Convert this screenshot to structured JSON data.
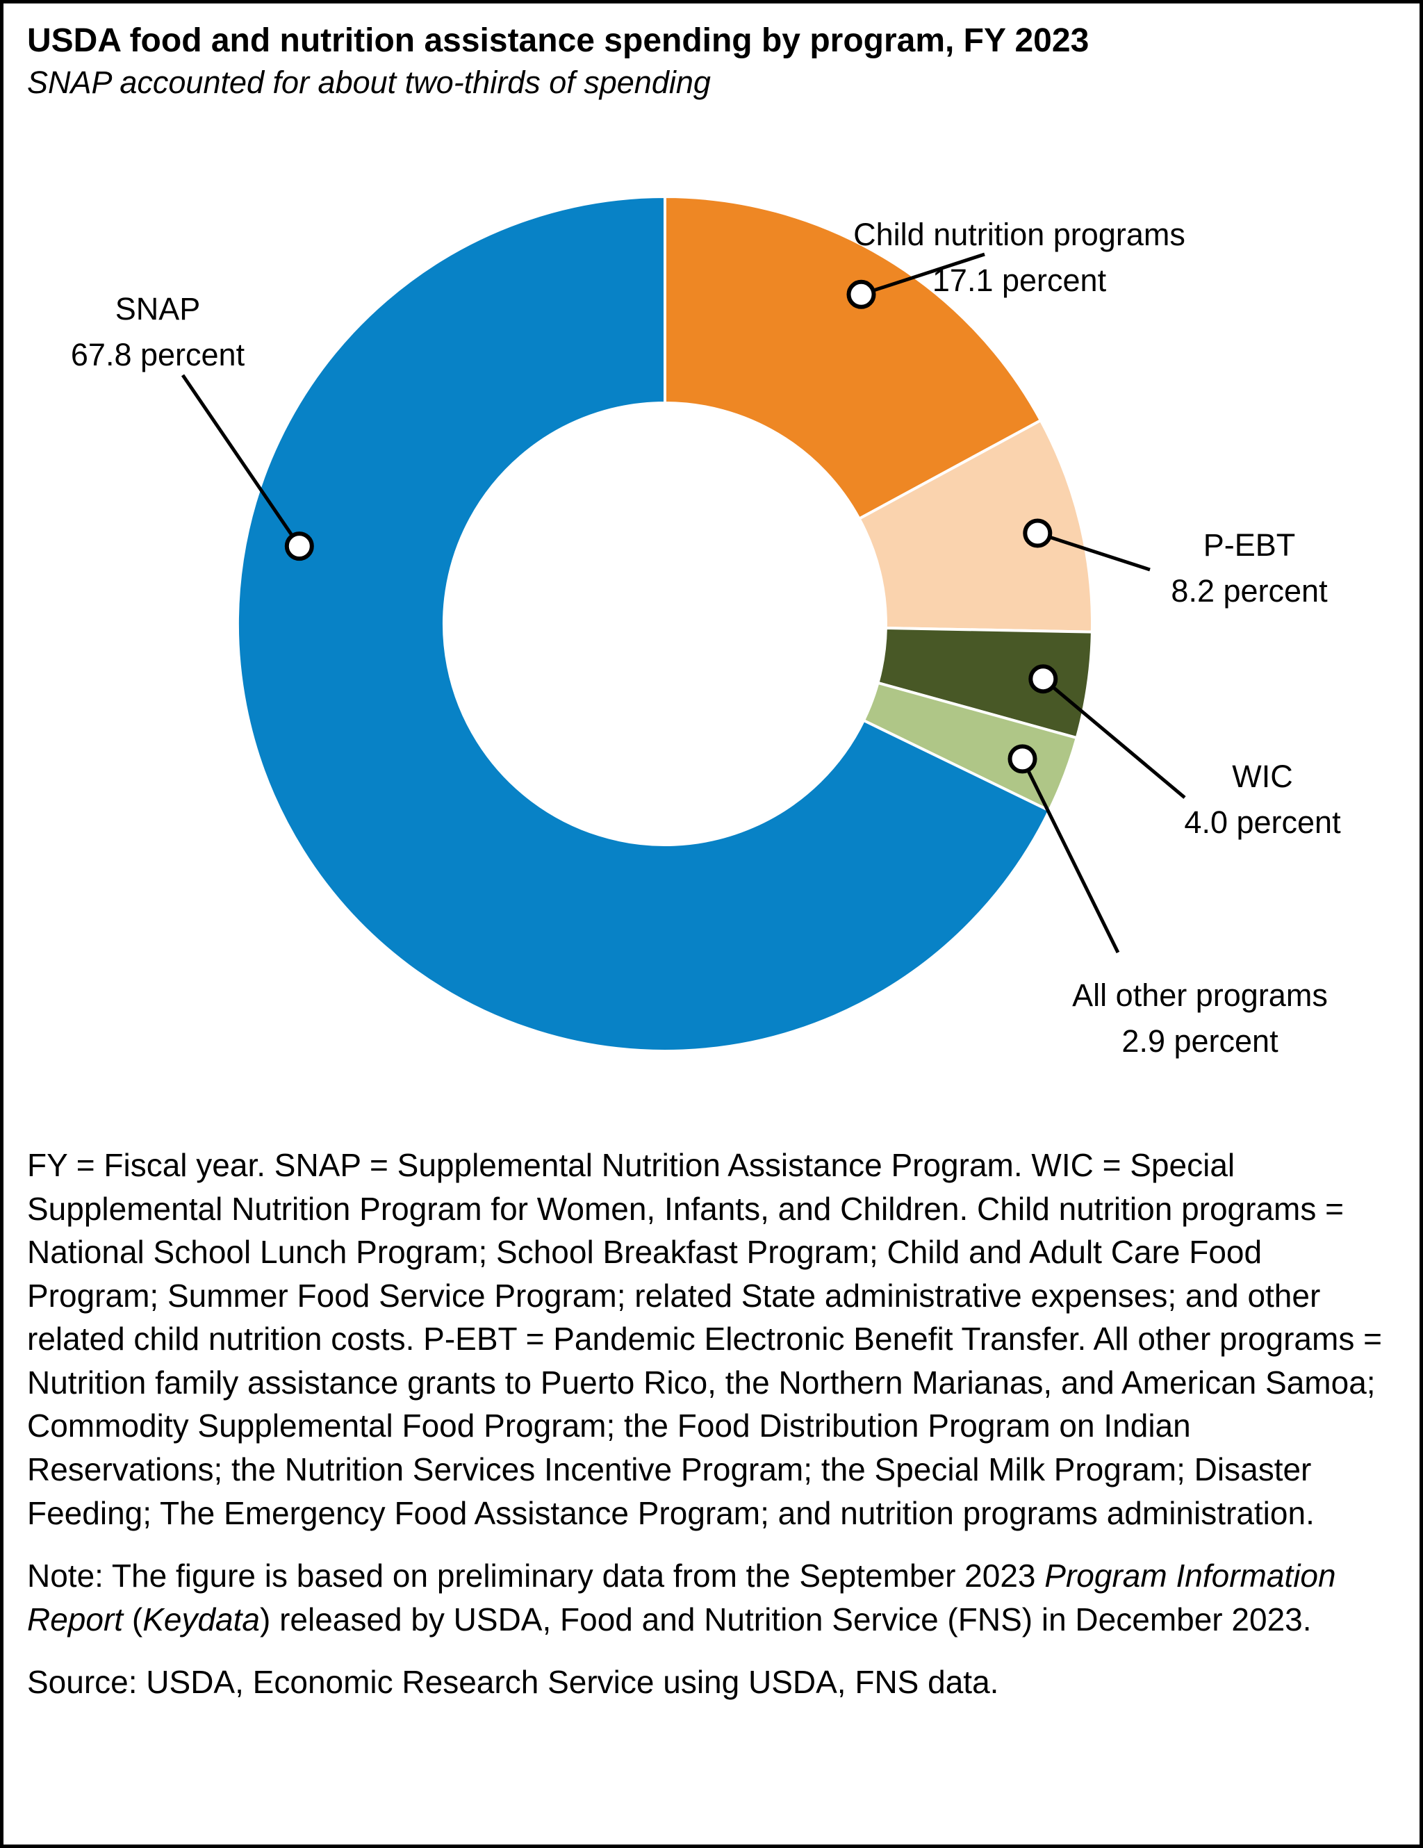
{
  "header": {
    "title": "USDA food and nutrition assistance spending by program, FY 2023",
    "subtitle": "SNAP accounted for about two-thirds of spending"
  },
  "chart_data": {
    "type": "pie",
    "donut": true,
    "title": "USDA food and nutrition assistance spending by program, FY 2023",
    "start_angle_deg": 0,
    "direction": "clockwise",
    "units": "percent of spending",
    "slices": [
      {
        "label": "Child nutrition programs",
        "pct": 17.1,
        "pct_label": "17.1 percent",
        "color": "#EE8724"
      },
      {
        "label": "P-EBT",
        "pct": 8.2,
        "pct_label": "8.2 percent",
        "color": "#FAD3AE"
      },
      {
        "label": "WIC",
        "pct": 4.0,
        "pct_label": "4.0 percent",
        "color": "#485826"
      },
      {
        "label": "All other programs",
        "pct": 2.9,
        "pct_label": "2.9 percent",
        "color": "#AFC687"
      },
      {
        "label": "SNAP",
        "pct": 67.8,
        "pct_label": "67.8 percent",
        "color": "#0882C6"
      }
    ],
    "marker_style": {
      "fill": "#ffffff",
      "stroke": "#000000"
    },
    "leader_line_color": "#000000"
  },
  "footnotes": {
    "definitions": "FY = Fiscal year. SNAP = Supplemental Nutrition Assistance Program. WIC = Special Supplemental Nutrition Program for Women, Infants, and Children. Child nutrition programs = National School Lunch Program; School Breakfast Program; Child and Adult Care Food Program; Summer Food Service Program; related State administrative expenses; and other related child nutrition costs. P-EBT = Pandemic Electronic Benefit Transfer. All other programs = Nutrition family assistance grants to Puerto Rico, the Northern Marianas, and American Samoa; Commodity Supplemental Food Program; the Food Distribution Program on Indian Reservations; the Nutrition Services Incentive Program; the Special Milk Program; Disaster Feeding; The Emergency Food Assistance Program; and nutrition programs administration.",
    "note_segments": [
      {
        "text": "Note: The figure is based on preliminary data from the September 2023 ",
        "italic": false
      },
      {
        "text": "Program Information Report",
        "italic": true
      },
      {
        "text": " (",
        "italic": false
      },
      {
        "text": "Keydata",
        "italic": true
      },
      {
        "text": ") released by USDA, Food and Nutrition Service (FNS) in December 2023.",
        "italic": false
      }
    ],
    "source": "Source: USDA, Economic Research Service using USDA, FNS data."
  }
}
